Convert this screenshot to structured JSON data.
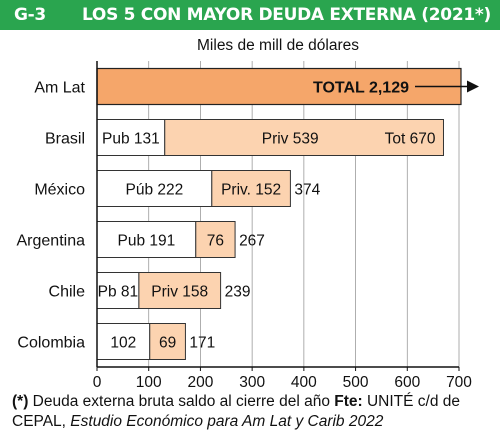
{
  "header": {
    "code": "G-3",
    "title": "LOS 5 CON MAYOR DEUDA EXTERNA (2021*)"
  },
  "chart_data": {
    "type": "bar",
    "stacked": true,
    "orientation": "horizontal",
    "subtitle": "Miles de mill de dólares",
    "categories": [
      "Am Lat",
      "Brasil",
      "México",
      "Argentina",
      "Chile",
      "Colombia"
    ],
    "xlim": [
      0,
      700
    ],
    "xticks": [
      0,
      100,
      200,
      300,
      400,
      500,
      600,
      700
    ],
    "rows": [
      {
        "category": "Am Lat",
        "public": null,
        "private": null,
        "total": 2129,
        "public_label": "",
        "private_label": "",
        "total_label": "TOTAL 2,129",
        "arrow": true
      },
      {
        "category": "Brasil",
        "public": 131,
        "private": 539,
        "total": 670,
        "public_label": "Pub 131",
        "private_label": "Priv 539",
        "total_label": "Tot 670",
        "arrow": false
      },
      {
        "category": "México",
        "public": 222,
        "private": 152,
        "total": 374,
        "public_label": "Púb 222",
        "private_label": "Priv. 152",
        "total_label": "374",
        "arrow": false
      },
      {
        "category": "Argentina",
        "public": 191,
        "private": 76,
        "total": 267,
        "public_label": "Pub 191",
        "private_label": "76",
        "total_label": "267",
        "arrow": false
      },
      {
        "category": "Chile",
        "public": 81,
        "private": 158,
        "total": 239,
        "public_label": "Pb 81",
        "private_label": "Priv 158",
        "total_label": "239",
        "arrow": false
      },
      {
        "category": "Colombia",
        "public": 102,
        "private": 69,
        "total": 171,
        "public_label": "102",
        "private_label": "69",
        "total_label": "171",
        "arrow": false
      }
    ],
    "colors": {
      "public": "#ffffff",
      "private": "#fcd3b0",
      "total": "#f5a66a",
      "header": "#2aa54f",
      "grid": "#9a9a9a"
    },
    "grid": true
  },
  "footnote": {
    "marker": "(*)",
    "text1": " Deuda externa bruta saldo al cierre del año ",
    "source_label": "Fte:",
    "text2": " UNITÉ c/d de CEPAL, ",
    "publication": "Estudio Económico para Am Lat y Carib 2022"
  }
}
